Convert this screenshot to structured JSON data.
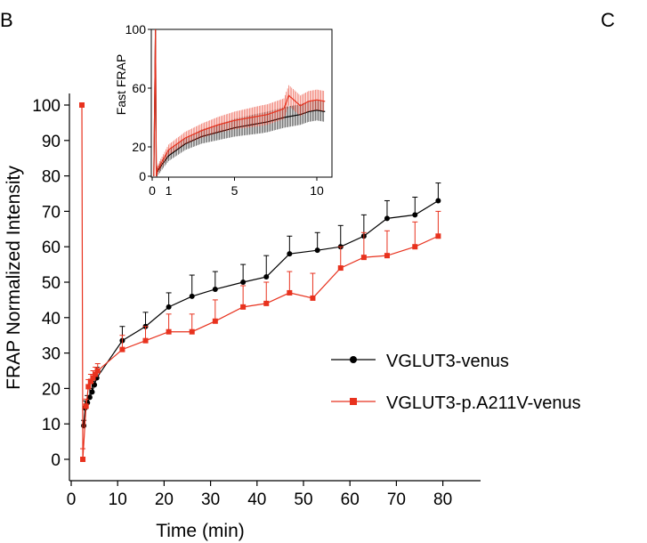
{
  "panels": {
    "left": "B",
    "right": "C"
  },
  "colors": {
    "black_series": "#000000",
    "red_series": "#e8321e",
    "axis": "#000000"
  },
  "chart_data": [
    {
      "type": "line",
      "xlabel": "Time (min)",
      "ylabel": "FRAP Normalized Intensity",
      "xlim": [
        0,
        85
      ],
      "ylim": [
        0,
        100
      ],
      "x_ticks": [
        "0",
        "10",
        "20",
        "30",
        "40",
        "50",
        "60",
        "70",
        "80"
      ],
      "y_ticks": [
        "0",
        "10",
        "20",
        "30",
        "40",
        "50",
        "60",
        "70",
        "80",
        "90",
        "100"
      ],
      "legend_position": "right",
      "series": [
        {
          "name": "VGLUT3-venus",
          "color": "#000000",
          "marker": "circle",
          "x": [
            2.7,
            3.0,
            3.5,
            4.0,
            4.5,
            5.0,
            5.5,
            11,
            16,
            21,
            26,
            31,
            37,
            42,
            47,
            53,
            58,
            63,
            68,
            74,
            79
          ],
          "y": [
            9.5,
            14.5,
            16,
            17.5,
            19,
            21,
            23,
            33.5,
            37.5,
            43,
            46,
            48,
            50,
            51.5,
            58,
            59,
            60,
            63,
            68,
            69,
            73
          ],
          "err": [
            1.5,
            2,
            2,
            2.5,
            3,
            3,
            3,
            4,
            4,
            4,
            6,
            5,
            5,
            6,
            5,
            5,
            6,
            6,
            5,
            5,
            5
          ]
        },
        {
          "name": "VGLUT3-p.A211V-venus",
          "color": "#e8321e",
          "marker": "square",
          "x": [
            2.3,
            2.5,
            3.2,
            3.7,
            4.2,
            4.7,
            5.2,
            5.7,
            11,
            16,
            21,
            26,
            31,
            37,
            42,
            47,
            52,
            58,
            63,
            68,
            74,
            79
          ],
          "y": [
            100,
            0,
            15,
            20.5,
            22,
            23,
            24,
            25,
            31,
            33.5,
            36,
            36,
            39,
            43,
            44,
            47,
            45.5,
            54,
            57,
            57.5,
            60,
            63
          ],
          "err": [
            0,
            3,
            2,
            2,
            2,
            2,
            2,
            2,
            4,
            4,
            5,
            5,
            6,
            6,
            6,
            6,
            7,
            6,
            7,
            7,
            7,
            7
          ]
        }
      ]
    },
    {
      "type": "line",
      "inset": true,
      "ylabel": "Fast FRAP",
      "xlim": [
        0,
        10.7
      ],
      "ylim": [
        0,
        100
      ],
      "x_ticks": [
        "0",
        "1",
        "5",
        "10"
      ],
      "y_ticks": [
        "0",
        "20",
        "60",
        "100"
      ],
      "series": [
        {
          "color": "#000000",
          "x": [
            0.1,
            0.2,
            0.25,
            0.3,
            0.6,
            1,
            1.5,
            2,
            3,
            4,
            5,
            6,
            7,
            8,
            9,
            9.5,
            10,
            10.5
          ],
          "y": [
            0,
            100,
            0,
            3,
            8,
            14,
            18,
            22,
            27,
            30,
            33,
            35,
            37,
            40,
            42,
            44,
            45,
            44
          ]
        },
        {
          "color": "#e8321e",
          "x": [
            0.1,
            0.2,
            0.25,
            0.3,
            0.6,
            1,
            1.5,
            2,
            3,
            4,
            5,
            6,
            7,
            8,
            8.3,
            9,
            9.5,
            10,
            10.5
          ],
          "y": [
            0,
            100,
            0,
            4,
            10,
            18,
            22,
            26,
            31,
            35,
            38,
            40,
            42,
            46,
            55,
            48,
            51,
            52,
            51
          ]
        }
      ]
    }
  ]
}
